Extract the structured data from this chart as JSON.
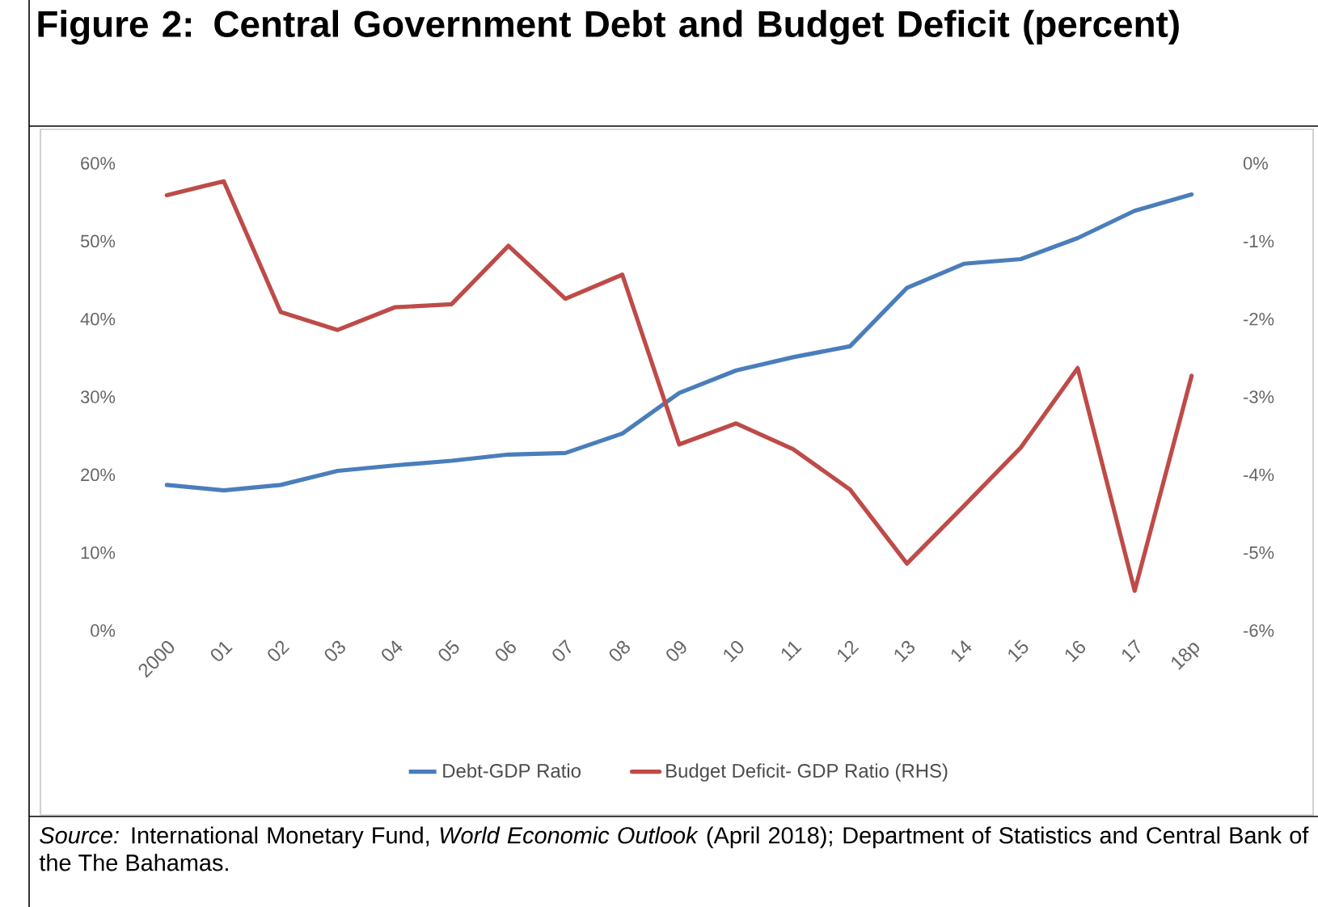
{
  "chart_data": {
    "type": "line",
    "title": "Figure 2: Central Government Debt and Budget Deficit (percent)",
    "categories": [
      "2000",
      "01",
      "02",
      "03",
      "04",
      "05",
      "06",
      "07",
      "08",
      "09",
      "10",
      "11",
      "12",
      "13",
      "14",
      "15",
      "16",
      "17",
      "18p"
    ],
    "series": [
      {
        "name": "Debt-GDP Ratio",
        "color": "#4a7ebb",
        "values": [
          18.7,
          18.0,
          18.7,
          20.5,
          21.2,
          21.8,
          22.6,
          22.8,
          25.3,
          30.5,
          33.4,
          35.1,
          36.5,
          44.0,
          47.1,
          47.7,
          50.4,
          53.9,
          56.0
        ]
      },
      {
        "name": "Budget Deficit- GDP Ratio (RHS)",
        "color": "#be4b48",
        "axis": "y2",
        "values": [
          -0.41,
          -0.23,
          -1.91,
          -2.14,
          -1.85,
          -1.81,
          -1.06,
          -1.74,
          -1.43,
          -3.61,
          -3.34,
          -3.67,
          -4.19,
          -5.14,
          -4.4,
          -3.65,
          -2.63,
          -5.49,
          -2.73
        ]
      }
    ],
    "ylim": [
      0,
      60
    ],
    "yticks": [
      {
        "value": 0,
        "label": "0%"
      },
      {
        "value": 10,
        "label": "10%"
      },
      {
        "value": 20,
        "label": "20%"
      },
      {
        "value": 30,
        "label": "30%"
      },
      {
        "value": 40,
        "label": "40%"
      },
      {
        "value": 50,
        "label": "50%"
      },
      {
        "value": 60,
        "label": "60%"
      }
    ],
    "y2lim": [
      -6,
      0
    ],
    "y2ticks": [
      {
        "value": -6,
        "label": "-6%"
      },
      {
        "value": -5,
        "label": "-5%"
      },
      {
        "value": -4,
        "label": "-4%"
      },
      {
        "value": -3,
        "label": "-3%"
      },
      {
        "value": -2,
        "label": "-2%"
      },
      {
        "value": -1,
        "label": "-1%"
      },
      {
        "value": 0,
        "label": "0%"
      }
    ],
    "legend": "bottom",
    "annotations": [
      "*Source:* International Monetary Fund, *World Economic Outlook* (April 2018); Department of Statistics and Central Bank of the The Bahamas."
    ]
  }
}
